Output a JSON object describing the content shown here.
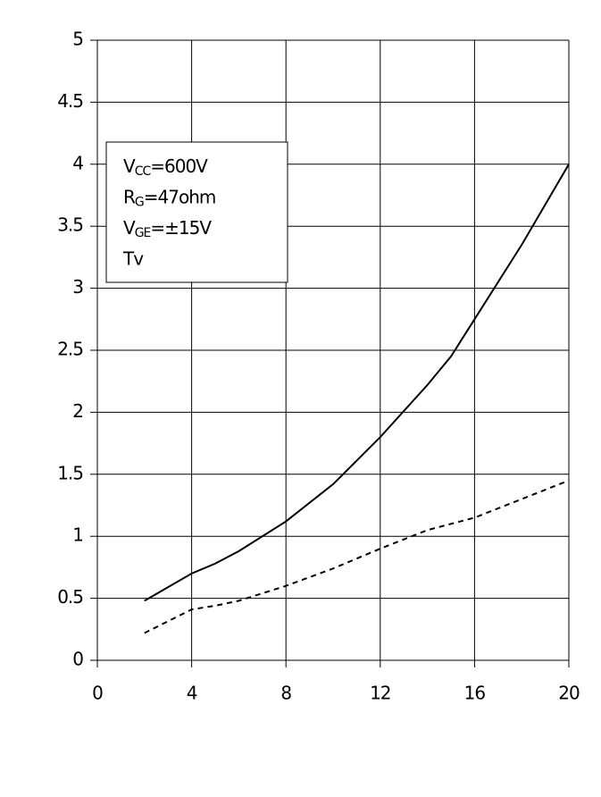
{
  "chart_data": {
    "type": "line",
    "x": [
      2,
      4,
      5,
      6,
      8,
      10,
      12,
      14,
      15,
      16,
      18,
      20
    ],
    "series": [
      {
        "color": "#000000",
        "style": "solid",
        "values": [
          0.48,
          0.7,
          0.78,
          0.88,
          1.12,
          1.42,
          1.8,
          2.22,
          2.45,
          2.75,
          3.35,
          4.0
        ]
      },
      {
        "color": "#000000",
        "style": "dashed",
        "values": [
          0.22,
          0.41,
          0.44,
          0.48,
          0.6,
          0.74,
          0.9,
          1.05,
          1.1,
          1.15,
          1.3,
          1.45
        ]
      }
    ],
    "xlim": [
      0,
      20
    ],
    "xticks": [
      0,
      4,
      8,
      12,
      16,
      20
    ],
    "ylim": [
      0,
      5
    ],
    "yticks": [
      0,
      0.5,
      1,
      1.5,
      2,
      2.5,
      3,
      3.5,
      4,
      4.5,
      5
    ],
    "grid": true,
    "annotation": [
      [
        "V",
        "CC",
        "=600V"
      ],
      [
        "R",
        "G",
        "=47ohm"
      ],
      [
        "V",
        "GE",
        "=±15V"
      ],
      [
        "Tv"
      ]
    ]
  }
}
